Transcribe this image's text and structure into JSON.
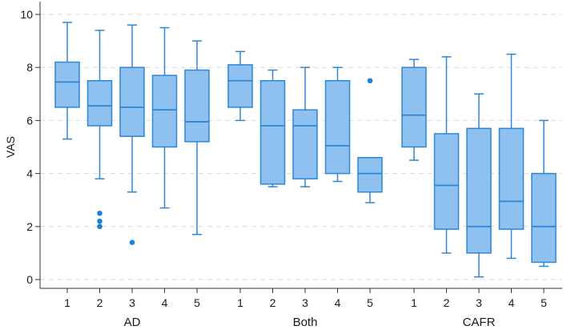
{
  "chart_data": {
    "type": "box",
    "ylabel": "VAS",
    "xlabel": "",
    "ylim": [
      0,
      10
    ],
    "yticks": [
      0,
      2,
      4,
      6,
      8,
      10
    ],
    "grid": "horizontal dashed",
    "colors": {
      "box_fill": "#8ec1ef",
      "box_stroke": "#2f86d6",
      "outlier": "#1f7fd9",
      "grid": "#d9d9d9",
      "axis": "#333333"
    },
    "groups": [
      {
        "name": "AD",
        "boxes": [
          {
            "label": "1",
            "min": 5.3,
            "q1": 6.5,
            "median": 7.45,
            "q3": 8.2,
            "max": 9.7,
            "outliers": []
          },
          {
            "label": "2",
            "min": 3.8,
            "q1": 5.8,
            "median": 6.55,
            "q3": 7.5,
            "max": 9.4,
            "outliers": [
              2.5,
              2.2,
              2.0
            ]
          },
          {
            "label": "3",
            "min": 3.3,
            "q1": 5.4,
            "median": 6.5,
            "q3": 8.0,
            "max": 9.6,
            "outliers": [
              1.4
            ]
          },
          {
            "label": "4",
            "min": 2.7,
            "q1": 5.0,
            "median": 6.4,
            "q3": 7.7,
            "max": 9.5,
            "outliers": []
          },
          {
            "label": "5",
            "min": 1.7,
            "q1": 5.2,
            "median": 5.95,
            "q3": 7.9,
            "max": 9.0,
            "outliers": []
          }
        ]
      },
      {
        "name": "Both",
        "boxes": [
          {
            "label": "1",
            "min": 6.0,
            "q1": 6.5,
            "median": 7.5,
            "q3": 8.1,
            "max": 8.6,
            "outliers": []
          },
          {
            "label": "2",
            "min": 3.5,
            "q1": 3.6,
            "median": 5.8,
            "q3": 7.5,
            "max": 7.9,
            "outliers": []
          },
          {
            "label": "3",
            "min": 3.5,
            "q1": 3.8,
            "median": 5.8,
            "q3": 6.4,
            "max": 8.0,
            "outliers": []
          },
          {
            "label": "4",
            "min": 3.7,
            "q1": 4.0,
            "median": 5.05,
            "q3": 7.5,
            "max": 8.0,
            "outliers": []
          },
          {
            "label": "5",
            "min": 2.9,
            "q1": 3.3,
            "median": 4.0,
            "q3": 4.6,
            "max": 4.6,
            "outliers": [
              7.5
            ]
          }
        ]
      },
      {
        "name": "CAFR",
        "boxes": [
          {
            "label": "1",
            "min": 4.5,
            "q1": 5.0,
            "median": 6.2,
            "q3": 8.0,
            "max": 8.3,
            "outliers": []
          },
          {
            "label": "2",
            "min": 1.0,
            "q1": 1.9,
            "median": 3.55,
            "q3": 5.5,
            "max": 8.4,
            "outliers": []
          },
          {
            "label": "3",
            "min": 0.1,
            "q1": 1.0,
            "median": 2.0,
            "q3": 5.7,
            "max": 7.0,
            "outliers": []
          },
          {
            "label": "4",
            "min": 0.8,
            "q1": 1.9,
            "median": 2.95,
            "q3": 5.7,
            "max": 8.5,
            "outliers": []
          },
          {
            "label": "5",
            "min": 0.5,
            "q1": 0.65,
            "median": 2.0,
            "q3": 4.0,
            "max": 6.0,
            "outliers": []
          }
        ]
      }
    ]
  }
}
